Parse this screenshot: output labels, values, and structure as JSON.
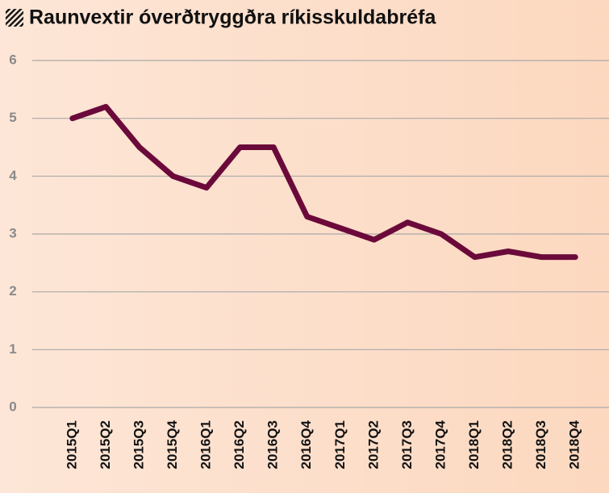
{
  "chart_data": {
    "type": "line",
    "title": "Raunvextir óverðtryggðra ríkisskuldabréfa",
    "categories": [
      "2015Q1",
      "2015Q2",
      "2015Q3",
      "2015Q4",
      "2016Q1",
      "2016Q2",
      "2016Q3",
      "2016Q4",
      "2017Q1",
      "2017Q2",
      "2017Q3",
      "2017Q4",
      "2018Q1",
      "2018Q2",
      "2018Q3",
      "2018Q4"
    ],
    "series": [
      {
        "color": "#6b0a3a",
        "values": [
          5.0,
          5.2,
          4.5,
          4.0,
          3.8,
          4.5,
          4.5,
          3.3,
          3.1,
          2.9,
          3.2,
          3.0,
          2.6,
          2.7,
          2.6,
          2.6
        ]
      }
    ],
    "ylim": [
      0,
      6
    ],
    "yticks": [
      0,
      1,
      2,
      3,
      4,
      5,
      6
    ],
    "grid": true
  }
}
